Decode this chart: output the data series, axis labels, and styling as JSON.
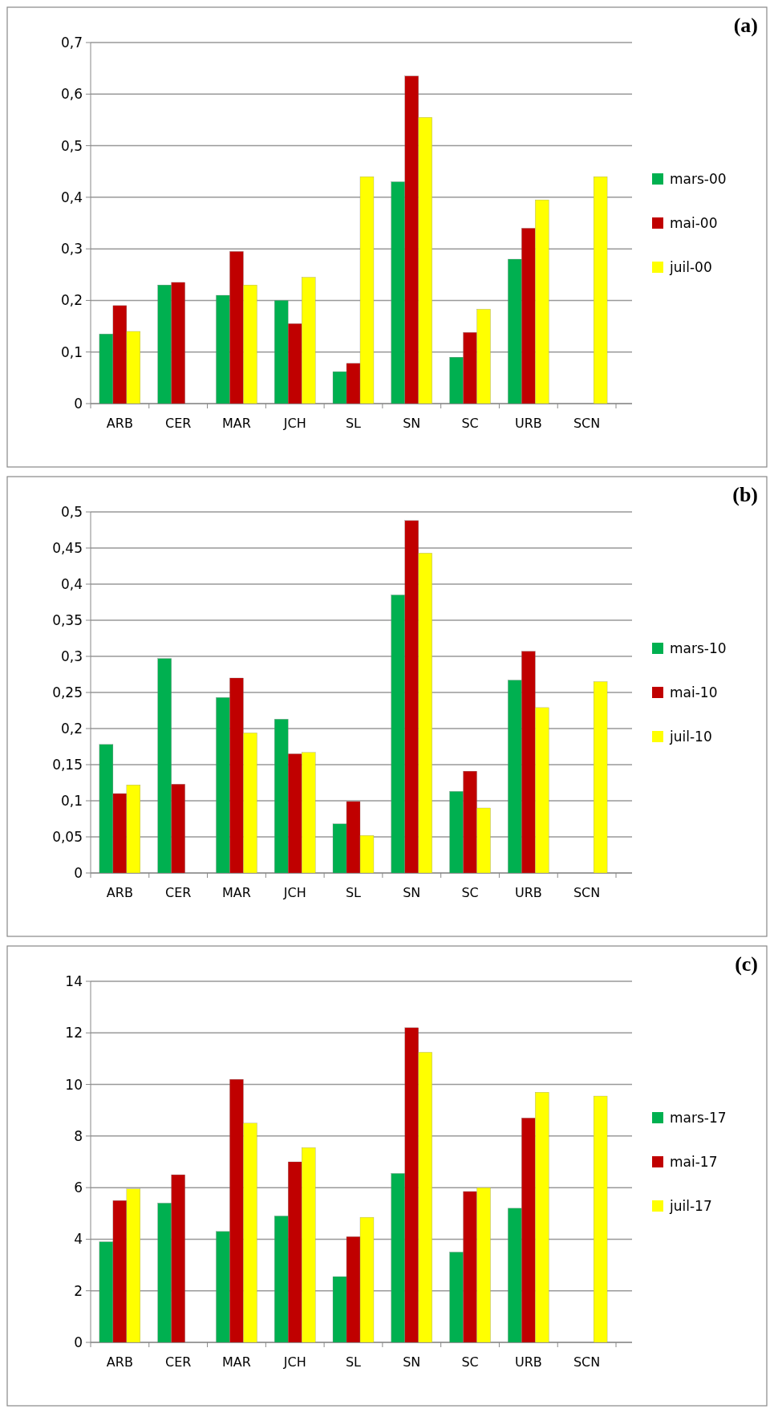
{
  "chart_data": [
    {
      "type": "bar",
      "annotations": [
        "(a)"
      ],
      "categories": [
        "ARB",
        "CER",
        "MAR",
        "JCH",
        "SL",
        "SN",
        "SC",
        "URB",
        "SCN"
      ],
      "series": [
        {
          "name": "mars-00",
          "color": "#00b050",
          "values": [
            0.135,
            0.23,
            0.21,
            0.2,
            0.062,
            0.43,
            0.09,
            0.28,
            null
          ]
        },
        {
          "name": "mai-00",
          "color": "#c00000",
          "values": [
            0.19,
            0.235,
            0.295,
            0.155,
            0.078,
            0.635,
            0.138,
            0.34,
            null
          ]
        },
        {
          "name": "juil-00",
          "color": "#ffff00",
          "values": [
            0.14,
            null,
            0.23,
            0.245,
            0.44,
            0.555,
            0.183,
            0.395,
            0.44
          ]
        }
      ],
      "ylim": [
        0,
        0.7
      ],
      "yticks": [
        0,
        {
          "value": 0.1,
          "label": "0,1"
        },
        {
          "value": 0.2,
          "label": "0,2"
        },
        {
          "value": 0.3,
          "label": "0,3"
        },
        {
          "value": 0.4,
          "label": "0,4"
        },
        {
          "value": 0.5,
          "label": "0,5"
        },
        {
          "value": 0.6,
          "label": "0,6"
        },
        {
          "value": 0.7,
          "label": "0,7"
        }
      ],
      "grid": "y",
      "legend": "right"
    },
    {
      "type": "bar",
      "annotations": [
        "(b)"
      ],
      "categories": [
        "ARB",
        "CER",
        "MAR",
        "JCH",
        "SL",
        "SN",
        "SC",
        "URB",
        "SCN"
      ],
      "series": [
        {
          "name": "mars-10",
          "color": "#00b050",
          "values": [
            0.178,
            0.297,
            0.243,
            0.213,
            0.068,
            0.385,
            0.113,
            0.267,
            null
          ]
        },
        {
          "name": "mai-10",
          "color": "#c00000",
          "values": [
            0.11,
            0.123,
            0.27,
            0.165,
            0.099,
            0.488,
            0.141,
            0.307,
            null
          ]
        },
        {
          "name": "juil-10",
          "color": "#ffff00",
          "values": [
            0.122,
            null,
            0.194,
            0.167,
            0.052,
            0.443,
            0.09,
            0.229,
            0.265
          ]
        }
      ],
      "ylim": [
        0,
        0.5
      ],
      "yticks": [
        0,
        {
          "value": 0.05,
          "label": "0,05"
        },
        {
          "value": 0.1,
          "label": "0,1"
        },
        {
          "value": 0.15,
          "label": "0,15"
        },
        {
          "value": 0.2,
          "label": "0,2"
        },
        {
          "value": 0.25,
          "label": "0,25"
        },
        {
          "value": 0.3,
          "label": "0,3"
        },
        {
          "value": 0.35,
          "label": "0,35"
        },
        {
          "value": 0.4,
          "label": "0,4"
        },
        {
          "value": 0.45,
          "label": "0,45"
        },
        {
          "value": 0.5,
          "label": "0,5"
        }
      ],
      "grid": "y",
      "legend": "right"
    },
    {
      "type": "bar",
      "annotations": [
        "(c)"
      ],
      "categories": [
        "ARB",
        "CER",
        "MAR",
        "JCH",
        "SL",
        "SN",
        "SC",
        "URB",
        "SCN"
      ],
      "series": [
        {
          "name": "mars-17",
          "color": "#00b050",
          "values": [
            3.9,
            5.4,
            4.3,
            4.9,
            2.55,
            6.55,
            3.5,
            5.2,
            null
          ]
        },
        {
          "name": "mai-17",
          "color": "#c00000",
          "values": [
            5.5,
            6.5,
            10.2,
            7.0,
            4.1,
            12.2,
            5.85,
            8.7,
            null
          ]
        },
        {
          "name": "juil-17",
          "color": "#ffff00",
          "values": [
            5.95,
            null,
            8.5,
            7.55,
            4.85,
            11.25,
            6.0,
            9.7,
            9.55
          ]
        }
      ],
      "ylim": [
        0,
        14
      ],
      "yticks": [
        0,
        2,
        4,
        6,
        8,
        10,
        12,
        14
      ],
      "grid": "y",
      "legend": "right"
    }
  ]
}
